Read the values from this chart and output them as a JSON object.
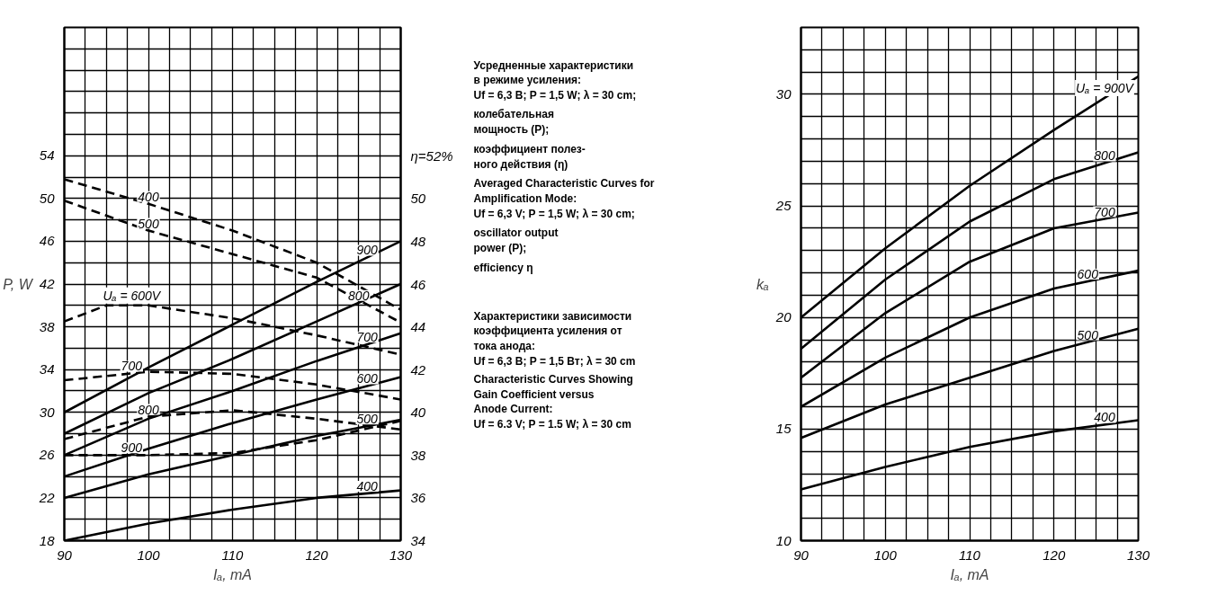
{
  "chart_data": [
    {
      "type": "line",
      "xlabel": "Iₐ, mA",
      "ylabel": "P, W",
      "grid": true,
      "legend": false,
      "x": [
        90,
        100,
        110,
        120,
        130
      ],
      "xlim": [
        90,
        130
      ],
      "ylim": [
        18,
        66
      ],
      "y2lim": [
        34,
        58
      ],
      "xticks": [
        90,
        {
          "value": 92.5,
          "label": null
        },
        {
          "value": 95,
          "label": null
        },
        {
          "value": 97.5,
          "label": null
        },
        100,
        {
          "value": 102.5,
          "label": null
        },
        {
          "value": 105,
          "label": null
        },
        {
          "value": 107.5,
          "label": null
        },
        110,
        {
          "value": 112.5,
          "label": null
        },
        {
          "value": 115,
          "label": null
        },
        {
          "value": 117.5,
          "label": null
        },
        120,
        {
          "value": 122.5,
          "label": null
        },
        {
          "value": 125,
          "label": null
        },
        {
          "value": 127.5,
          "label": null
        },
        130
      ],
      "yticks": [
        18,
        {
          "value": 20,
          "label": null
        },
        22,
        {
          "value": 24,
          "label": null
        },
        26,
        {
          "value": 28,
          "label": null
        },
        30,
        {
          "value": 32,
          "label": null
        },
        34,
        {
          "value": 36,
          "label": null
        },
        38,
        {
          "value": 40,
          "label": null
        },
        42,
        {
          "value": 44,
          "label": null
        },
        46,
        {
          "value": 48,
          "label": null
        },
        50,
        {
          "value": 52,
          "label": null
        },
        54,
        {
          "value": 56,
          "label": null
        },
        {
          "value": 58,
          "label": null
        },
        {
          "value": 60,
          "label": null
        },
        {
          "value": 62,
          "label": null
        },
        {
          "value": 64,
          "label": null
        },
        {
          "value": 66,
          "label": null
        }
      ],
      "y2ticks": [
        34,
        36,
        38,
        40,
        42,
        44,
        46,
        48,
        50,
        {
          "value": 52,
          "label": "η=52%"
        }
      ],
      "series": [
        {
          "name": "900",
          "color": "#000000",
          "line_style": "solid",
          "values": [
            30,
            34.2,
            38.2,
            42.2,
            46
          ]
        },
        {
          "name": "800",
          "color": "#000000",
          "line_style": "solid",
          "values": [
            28,
            31.8,
            35,
            38.5,
            42
          ]
        },
        {
          "name": "700",
          "color": "#000000",
          "line_style": "solid",
          "values": [
            26,
            29.4,
            32,
            34.8,
            37.4
          ]
        },
        {
          "name": "600",
          "color": "#000000",
          "line_style": "solid",
          "values": [
            24,
            26.6,
            29,
            31.2,
            33.3
          ]
        },
        {
          "name": "500",
          "color": "#000000",
          "line_style": "solid",
          "values": [
            22,
            24.2,
            26,
            27.8,
            29.3
          ]
        },
        {
          "name": "400",
          "color": "#000000",
          "line_style": "solid",
          "values": [
            18,
            19.6,
            20.9,
            22,
            22.7
          ]
        },
        {
          "name": "400",
          "color": "#000000",
          "line_style": "dashed",
          "axis": "y2",
          "values": [
            50.9,
            49.75,
            48.5,
            47.0,
            44.8
          ]
        },
        {
          "name": "500",
          "color": "#000000",
          "line_style": "dashed",
          "axis": "y2",
          "values": [
            49.9,
            48.5,
            47.4,
            46.3,
            44.2
          ]
        },
        {
          "name": "Uₐ = 600V",
          "color": "#000000",
          "line_style": "dashed",
          "axis": "y2",
          "x": [
            90,
            95,
            100,
            110,
            120,
            130
          ],
          "values": [
            44.25,
            45,
            45,
            44.4,
            43.6,
            42.7
          ]
        },
        {
          "name": "700",
          "color": "#000000",
          "line_style": "dashed",
          "axis": "y2",
          "values": [
            41.5,
            41.9,
            41.8,
            41.3,
            40.6
          ]
        },
        {
          "name": "800",
          "color": "#000000",
          "line_style": "dashed",
          "axis": "y2",
          "values": [
            38.75,
            39.8,
            40.1,
            39.7,
            39.2
          ]
        },
        {
          "name": "900",
          "color": "#000000",
          "line_style": "dashed",
          "axis": "y2",
          "values": [
            38,
            38,
            38.1,
            38.7,
            39.6
          ]
        }
      ]
    },
    {
      "type": "other",
      "annotations": [
        "Усредненные характеристики\nв режиме усиления:\nUf = 6,3 В; P = 1,5 W; λ = 30 cm;",
        "колебательная\nмощность (P);",
        "коэффициент полез-\nного действия (η)",
        "Averaged Characteristic Curves for\nAmplification Mode:\nUf = 6,3 V; P = 1,5 W; λ = 30 cm;",
        "oscillator output\npower (P);",
        "efficiency η",
        "Характеристики зависимости\nкоэффициента усиления от\nтока анода:\nUf = 6,3 B; P = 1,5 Вт; λ = 30 cm",
        "Characteristic Curves Showing\nGain Coefficient versus\nAnode Current:\nUf = 6.3 V; P = 1.5 W; λ = 30 cm"
      ]
    },
    {
      "type": "line",
      "xlabel": "Iₐ, mA",
      "ylabel": "kₐ",
      "grid": true,
      "legend": false,
      "x": [
        90,
        100,
        110,
        120,
        130
      ],
      "xlim": [
        90,
        130
      ],
      "ylim": [
        10,
        33
      ],
      "xticks": [
        90,
        {
          "value": 92.5,
          "label": null
        },
        {
          "value": 95,
          "label": null
        },
        {
          "value": 97.5,
          "label": null
        },
        100,
        {
          "value": 102.5,
          "label": null
        },
        {
          "value": 105,
          "label": null
        },
        {
          "value": 107.5,
          "label": null
        },
        110,
        {
          "value": 112.5,
          "label": null
        },
        {
          "value": 115,
          "label": null
        },
        {
          "value": 117.5,
          "label": null
        },
        120,
        {
          "value": 122.5,
          "label": null
        },
        {
          "value": 125,
          "label": null
        },
        {
          "value": 127.5,
          "label": null
        },
        130
      ],
      "yticks": [
        10,
        {
          "value": 11,
          "label": null
        },
        {
          "value": 12,
          "label": null
        },
        {
          "value": 13,
          "label": null
        },
        {
          "value": 14,
          "label": null
        },
        15,
        {
          "value": 16,
          "label": null
        },
        {
          "value": 17,
          "label": null
        },
        {
          "value": 18,
          "label": null
        },
        {
          "value": 19,
          "label": null
        },
        20,
        {
          "value": 21,
          "label": null
        },
        {
          "value": 22,
          "label": null
        },
        {
          "value": 23,
          "label": null
        },
        {
          "value": 24,
          "label": null
        },
        25,
        {
          "value": 26,
          "label": null
        },
        {
          "value": 27,
          "label": null
        },
        {
          "value": 28,
          "label": null
        },
        {
          "value": 29,
          "label": null
        },
        30,
        {
          "value": 31,
          "label": null
        },
        {
          "value": 32,
          "label": null
        },
        {
          "value": 33,
          "label": null
        }
      ],
      "series": [
        {
          "name": "Uₐ = 900V",
          "color": "#000000",
          "line_style": "solid",
          "values": [
            20,
            23.1,
            25.9,
            28.4,
            30.8
          ]
        },
        {
          "name": "800",
          "color": "#000000",
          "line_style": "solid",
          "values": [
            18.6,
            21.7,
            24.3,
            26.2,
            27.4
          ]
        },
        {
          "name": "700",
          "color": "#000000",
          "line_style": "solid",
          "values": [
            17.3,
            20.2,
            22.5,
            24.0,
            24.7
          ]
        },
        {
          "name": "600",
          "color": "#000000",
          "line_style": "solid",
          "values": [
            16,
            18.2,
            20.0,
            21.3,
            22.1
          ]
        },
        {
          "name": "500",
          "color": "#000000",
          "line_style": "solid",
          "values": [
            14.6,
            16.1,
            17.3,
            18.5,
            19.5
          ]
        },
        {
          "name": "400",
          "color": "#000000",
          "line_style": "solid",
          "values": [
            12.3,
            13.3,
            14.2,
            14.9,
            15.4
          ]
        }
      ]
    }
  ]
}
